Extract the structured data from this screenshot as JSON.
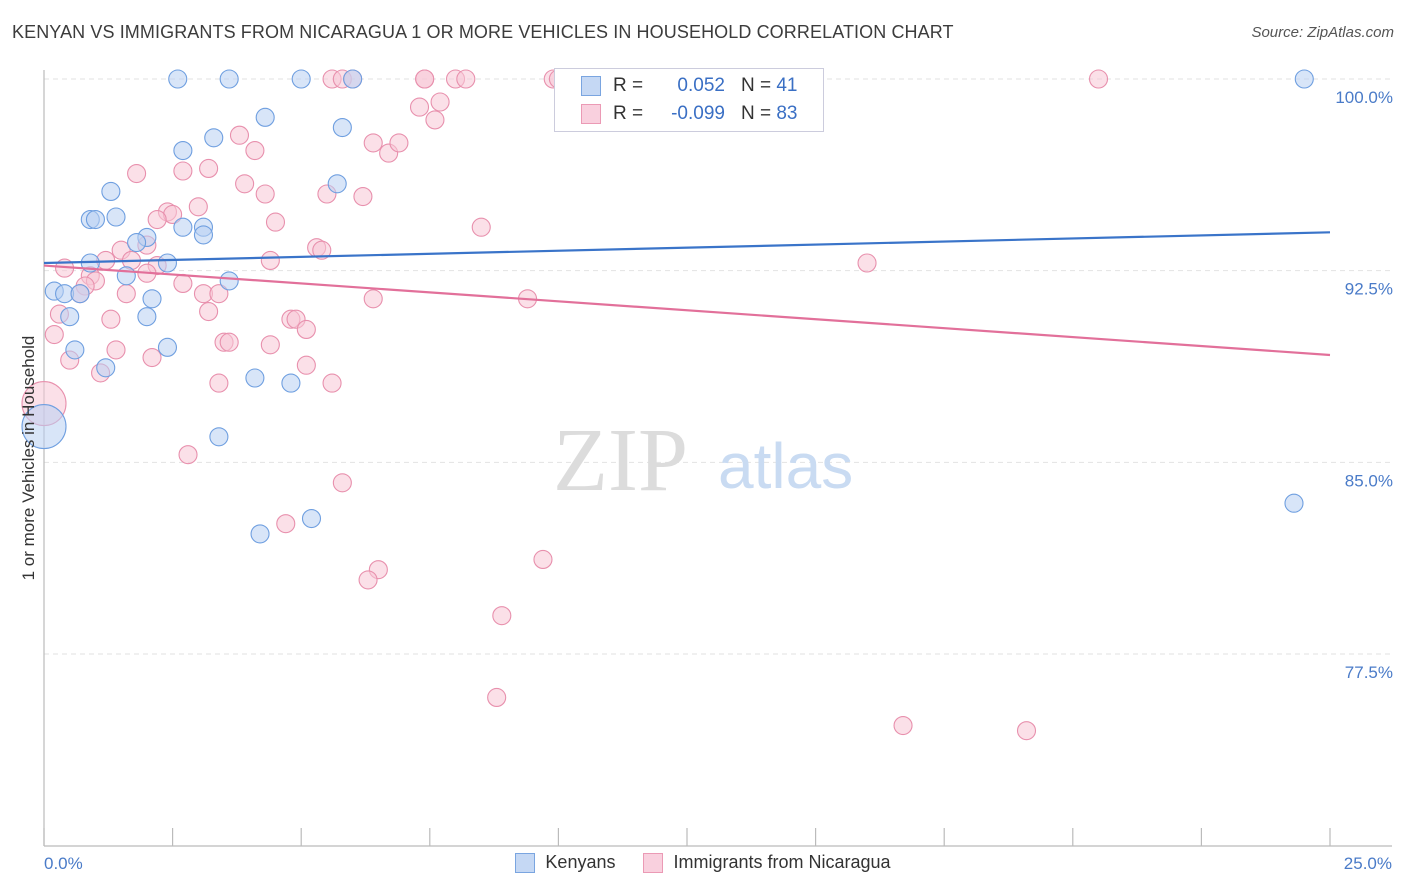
{
  "header": {
    "title": "KENYAN VS IMMIGRANTS FROM NICARAGUA 1 OR MORE VEHICLES IN HOUSEHOLD CORRELATION CHART",
    "source": "Source: ZipAtlas.com"
  },
  "watermark": {
    "zip": "ZIP",
    "atlas": "atlas"
  },
  "legend": {
    "r_label": "R =",
    "n_label": "N =",
    "series": [
      {
        "r": "0.052",
        "n": "41"
      },
      {
        "r": "-0.099",
        "n": "83"
      }
    ]
  },
  "chart_data": {
    "type": "scatter",
    "title": "KENYAN VS IMMIGRANTS FROM NICARAGUA 1 OR MORE VEHICLES IN HOUSEHOLD CORRELATION CHART",
    "xlabel": "",
    "ylabel": "1 or more Vehicles in Household",
    "xlim": [
      0,
      25
    ],
    "ylim": [
      70.2,
      101
    ],
    "x_tick_labels": [
      "0.0%",
      "25.0%"
    ],
    "y_ticks": [
      77.5,
      85.0,
      92.5,
      100.0
    ],
    "y_tick_labels": [
      "77.5%",
      "85.0%",
      "92.5%",
      "100.0%"
    ],
    "grid": true,
    "legend_position": "bottom-center",
    "series": [
      {
        "name": "Kenyans",
        "color": "#6f9fe0",
        "fill": "#b8cff2",
        "r": 0.052,
        "n": 41,
        "trend": {
          "x": [
            0,
            25
          ],
          "y": [
            92.8,
            94.0
          ]
        },
        "points": [
          {
            "x": 2.6,
            "y": 100.0
          },
          {
            "x": 3.6,
            "y": 100.0
          },
          {
            "x": 5.0,
            "y": 100.0
          },
          {
            "x": 6.0,
            "y": 100.0
          },
          {
            "x": 10.2,
            "y": 100.0
          },
          {
            "x": 24.5,
            "y": 100.0
          },
          {
            "x": 4.3,
            "y": 98.5
          },
          {
            "x": 5.8,
            "y": 98.1
          },
          {
            "x": 3.3,
            "y": 97.7
          },
          {
            "x": 2.7,
            "y": 97.2
          },
          {
            "x": 5.7,
            "y": 95.9
          },
          {
            "x": 1.3,
            "y": 95.6
          },
          {
            "x": 1.4,
            "y": 94.6
          },
          {
            "x": 0.9,
            "y": 94.5
          },
          {
            "x": 1.0,
            "y": 94.5
          },
          {
            "x": 2.7,
            "y": 94.2
          },
          {
            "x": 3.1,
            "y": 94.2
          },
          {
            "x": 2.0,
            "y": 93.8
          },
          {
            "x": 1.8,
            "y": 93.6
          },
          {
            "x": 3.1,
            "y": 93.9
          },
          {
            "x": 0.9,
            "y": 92.8
          },
          {
            "x": 2.4,
            "y": 92.8
          },
          {
            "x": 1.6,
            "y": 92.3
          },
          {
            "x": 3.6,
            "y": 92.1
          },
          {
            "x": 0.2,
            "y": 91.7
          },
          {
            "x": 0.4,
            "y": 91.6
          },
          {
            "x": 0.7,
            "y": 91.6
          },
          {
            "x": 2.1,
            "y": 91.4
          },
          {
            "x": 0.5,
            "y": 90.7
          },
          {
            "x": 2.0,
            "y": 90.7
          },
          {
            "x": 0.6,
            "y": 89.4
          },
          {
            "x": 2.4,
            "y": 89.5
          },
          {
            "x": 1.2,
            "y": 88.7
          },
          {
            "x": 4.1,
            "y": 88.3
          },
          {
            "x": 4.8,
            "y": 88.1
          },
          {
            "x": 0.0,
            "y": 86.4
          },
          {
            "x": 3.4,
            "y": 86.0
          },
          {
            "x": 5.2,
            "y": 82.8
          },
          {
            "x": 4.2,
            "y": 82.2
          },
          {
            "x": 24.3,
            "y": 83.4
          }
        ]
      },
      {
        "name": "Immigrants from Nicaragua",
        "color": "#e890ad",
        "fill": "#f7c6d6",
        "r": -0.099,
        "n": 83,
        "trend": {
          "x": [
            0,
            25
          ],
          "y": [
            92.7,
            89.2
          ]
        },
        "points": [
          {
            "x": 5.6,
            "y": 100.0
          },
          {
            "x": 5.8,
            "y": 100.0
          },
          {
            "x": 6.0,
            "y": 100.0
          },
          {
            "x": 7.4,
            "y": 100.0
          },
          {
            "x": 7.4,
            "y": 100.0
          },
          {
            "x": 8.0,
            "y": 100.0
          },
          {
            "x": 8.2,
            "y": 100.0
          },
          {
            "x": 9.9,
            "y": 100.0
          },
          {
            "x": 10.0,
            "y": 100.0
          },
          {
            "x": 20.5,
            "y": 100.0
          },
          {
            "x": 7.3,
            "y": 98.9
          },
          {
            "x": 7.7,
            "y": 99.1
          },
          {
            "x": 7.6,
            "y": 98.4
          },
          {
            "x": 3.8,
            "y": 97.8
          },
          {
            "x": 4.1,
            "y": 97.2
          },
          {
            "x": 6.4,
            "y": 97.5
          },
          {
            "x": 6.7,
            "y": 97.1
          },
          {
            "x": 6.9,
            "y": 97.5
          },
          {
            "x": 1.8,
            "y": 96.3
          },
          {
            "x": 2.7,
            "y": 96.4
          },
          {
            "x": 3.2,
            "y": 96.5
          },
          {
            "x": 3.9,
            "y": 95.9
          },
          {
            "x": 4.3,
            "y": 95.5
          },
          {
            "x": 5.5,
            "y": 95.5
          },
          {
            "x": 6.2,
            "y": 95.4
          },
          {
            "x": 2.4,
            "y": 94.8
          },
          {
            "x": 2.5,
            "y": 94.7
          },
          {
            "x": 2.2,
            "y": 94.5
          },
          {
            "x": 3.0,
            "y": 95.0
          },
          {
            "x": 4.5,
            "y": 94.4
          },
          {
            "x": 8.5,
            "y": 94.2
          },
          {
            "x": 1.5,
            "y": 93.3
          },
          {
            "x": 2.0,
            "y": 93.5
          },
          {
            "x": 5.3,
            "y": 93.4
          },
          {
            "x": 5.4,
            "y": 93.3
          },
          {
            "x": 1.2,
            "y": 92.9
          },
          {
            "x": 1.7,
            "y": 92.9
          },
          {
            "x": 2.2,
            "y": 92.7
          },
          {
            "x": 4.4,
            "y": 92.9
          },
          {
            "x": 16.0,
            "y": 92.8
          },
          {
            "x": 0.4,
            "y": 92.6
          },
          {
            "x": 0.9,
            "y": 92.3
          },
          {
            "x": 1.0,
            "y": 92.1
          },
          {
            "x": 2.0,
            "y": 92.4
          },
          {
            "x": 2.7,
            "y": 92.0
          },
          {
            "x": 0.8,
            "y": 91.9
          },
          {
            "x": 0.7,
            "y": 91.6
          },
          {
            "x": 1.6,
            "y": 91.6
          },
          {
            "x": 3.1,
            "y": 91.6
          },
          {
            "x": 3.4,
            "y": 91.6
          },
          {
            "x": 6.4,
            "y": 91.4
          },
          {
            "x": 9.4,
            "y": 91.4
          },
          {
            "x": 0.3,
            "y": 90.8
          },
          {
            "x": 1.3,
            "y": 90.6
          },
          {
            "x": 3.2,
            "y": 90.9
          },
          {
            "x": 4.8,
            "y": 90.6
          },
          {
            "x": 4.9,
            "y": 90.6
          },
          {
            "x": 5.1,
            "y": 90.2
          },
          {
            "x": 0.2,
            "y": 90.0
          },
          {
            "x": 3.5,
            "y": 89.7
          },
          {
            "x": 3.6,
            "y": 89.7
          },
          {
            "x": 4.4,
            "y": 89.6
          },
          {
            "x": 1.4,
            "y": 89.4
          },
          {
            "x": 2.1,
            "y": 89.1
          },
          {
            "x": 0.5,
            "y": 89.0
          },
          {
            "x": 5.1,
            "y": 88.8
          },
          {
            "x": 1.1,
            "y": 88.5
          },
          {
            "x": 3.4,
            "y": 88.1
          },
          {
            "x": 5.6,
            "y": 88.1
          },
          {
            "x": 0.0,
            "y": 87.3
          },
          {
            "x": 2.8,
            "y": 85.3
          },
          {
            "x": 5.8,
            "y": 84.2
          },
          {
            "x": 4.7,
            "y": 82.6
          },
          {
            "x": 9.7,
            "y": 81.2
          },
          {
            "x": 6.5,
            "y": 80.8
          },
          {
            "x": 6.3,
            "y": 80.4
          },
          {
            "x": 8.9,
            "y": 79.0
          },
          {
            "x": 8.8,
            "y": 75.8
          },
          {
            "x": 16.7,
            "y": 74.7
          },
          {
            "x": 19.1,
            "y": 74.5
          }
        ]
      }
    ]
  }
}
